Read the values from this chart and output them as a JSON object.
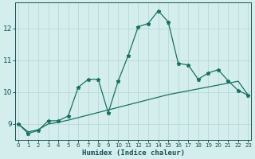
{
  "xlabel": "Humidex (Indice chaleur)",
  "x": [
    0,
    1,
    2,
    3,
    4,
    5,
    6,
    7,
    8,
    9,
    10,
    11,
    12,
    13,
    14,
    15,
    16,
    17,
    18,
    19,
    20,
    21,
    22,
    23
  ],
  "line1": [
    9.0,
    8.7,
    8.8,
    9.1,
    9.1,
    9.25,
    10.15,
    10.4,
    10.4,
    9.35,
    10.35,
    11.15,
    12.05,
    12.15,
    12.55,
    12.2,
    10.9,
    10.85,
    10.4,
    10.6,
    10.7,
    10.35,
    10.05,
    9.9
  ],
  "line2": [
    9.0,
    8.75,
    8.82,
    9.0,
    9.05,
    9.12,
    9.2,
    9.28,
    9.36,
    9.44,
    9.52,
    9.6,
    9.68,
    9.76,
    9.84,
    9.92,
    9.98,
    10.04,
    10.1,
    10.16,
    10.22,
    10.28,
    10.34,
    9.9
  ],
  "line_color": "#1a7060",
  "bg_color": "#d4eeee",
  "grid_color": "#b8d8d8",
  "text_color": "#1a5050",
  "ylim": [
    8.5,
    12.8
  ],
  "yticks": [
    9,
    10,
    11,
    12
  ],
  "xticks": [
    0,
    1,
    2,
    3,
    4,
    5,
    6,
    7,
    8,
    9,
    10,
    11,
    12,
    13,
    14,
    15,
    16,
    17,
    18,
    19,
    20,
    21,
    22,
    23
  ],
  "xlim": [
    -0.3,
    23.3
  ]
}
